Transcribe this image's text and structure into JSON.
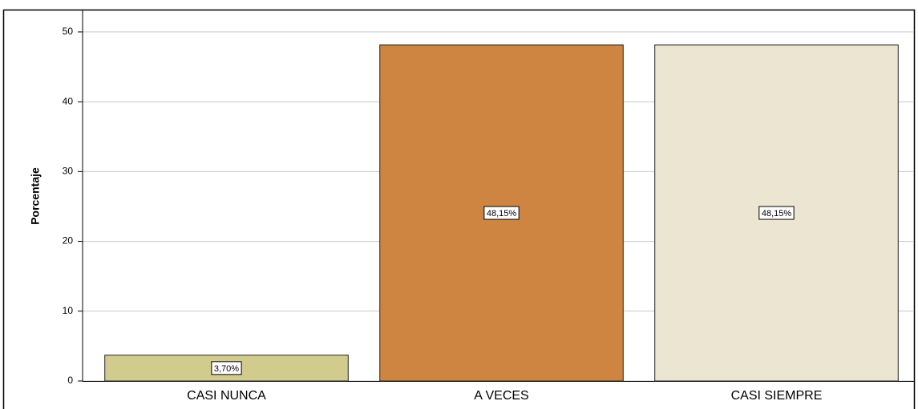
{
  "chart_data": {
    "type": "bar",
    "ylabel": "Porcentaje",
    "categories": [
      "CASI NUNCA",
      "A VECES",
      "CASI SIEMPRE"
    ],
    "values": [
      3.7,
      48.15,
      48.15
    ],
    "value_labels": [
      "3,70%",
      "48,15%",
      "48,15%"
    ],
    "colors": [
      "#d1cb8e",
      "#cd8541",
      "#ece5d1"
    ],
    "ylim": [
      0,
      53.2
    ],
    "yticks": [
      0,
      10,
      20,
      30,
      40,
      50
    ],
    "grid": true
  }
}
